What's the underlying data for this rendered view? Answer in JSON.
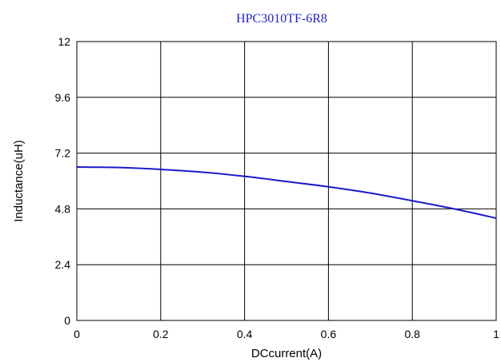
{
  "chart_data": {
    "type": "line",
    "title": "HPC3010TF-6R8",
    "xlabel": "DCcurrent(A)",
    "ylabel": "Inductance(uH)",
    "xlim": [
      0,
      1
    ],
    "ylim": [
      0,
      12
    ],
    "xticks": [
      "0",
      "0.2",
      "0.4",
      "0.6",
      "0.8",
      "1"
    ],
    "yticks": [
      "0",
      "2.4",
      "4.8",
      "7.2",
      "9.6",
      "12"
    ],
    "grid": true,
    "series": [
      {
        "color": "#1a1acc",
        "x": [
          0,
          0.1,
          0.2,
          0.3,
          0.4,
          0.5,
          0.6,
          0.7,
          0.8,
          0.9,
          1.0
        ],
        "y": [
          6.6,
          6.58,
          6.5,
          6.38,
          6.2,
          5.98,
          5.75,
          5.48,
          5.15,
          4.8,
          4.4
        ]
      }
    ]
  }
}
